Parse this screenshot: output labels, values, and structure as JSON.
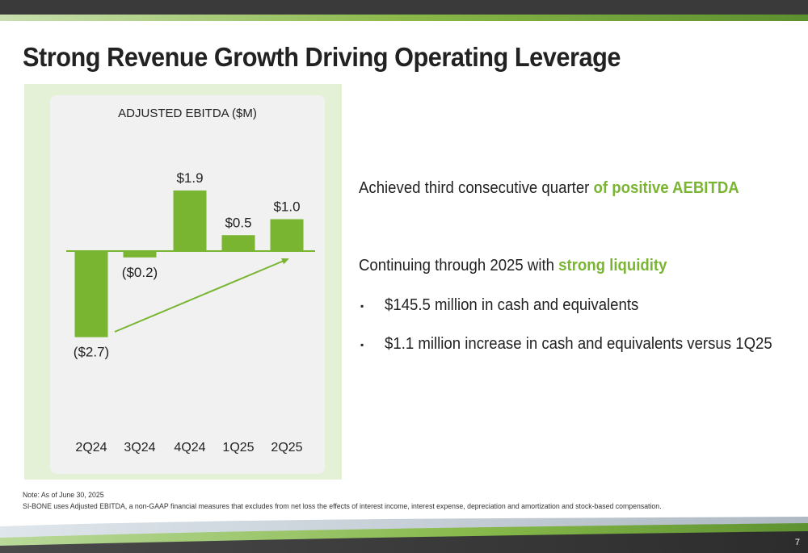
{
  "slide": {
    "title": "Strong Revenue Growth Driving Operating Leverage",
    "page_number": "7"
  },
  "highlights": {
    "line1_prefix": "Achieved third consecutive quarter ",
    "line1_highlight": "of positive AEBITDA",
    "line2_prefix": "Continuing through 2025 with ",
    "line2_highlight": "strong liquidity",
    "bullet_glyph": "▪",
    "bullets": [
      "$145.5 million in cash and equivalents",
      "$1.1 million increase in cash and equivalents versus 1Q25"
    ]
  },
  "notes": {
    "line1": "Note: As of June 30, 2025",
    "line2": "SI-BONE uses Adjusted EBITDA, a non-GAAP financial measures that excludes from net loss the effects of interest income, interest expense, depreciation and amortization and stock-based compensation."
  },
  "colors": {
    "accent": "#7ab532",
    "dark_bar": "#3a3a3a",
    "panel_bg": "#e4f1d6",
    "chart_bg": "#f1f1f1"
  },
  "chart_data": {
    "type": "bar",
    "title": "ADJUSTED EBITDA ($M)",
    "categories": [
      "2Q24",
      "3Q24",
      "4Q24",
      "1Q25",
      "2Q25"
    ],
    "values": [
      -2.7,
      -0.2,
      1.9,
      0.5,
      1.0
    ],
    "data_labels": [
      "($2.7)",
      "($0.2)",
      "$1.9",
      "$0.5",
      "$1.0"
    ],
    "ylim": [
      -2.7,
      1.9
    ],
    "grid": false,
    "legend": "none",
    "annotations": [
      "trend arrow from 2Q24 to 2Q25"
    ]
  }
}
